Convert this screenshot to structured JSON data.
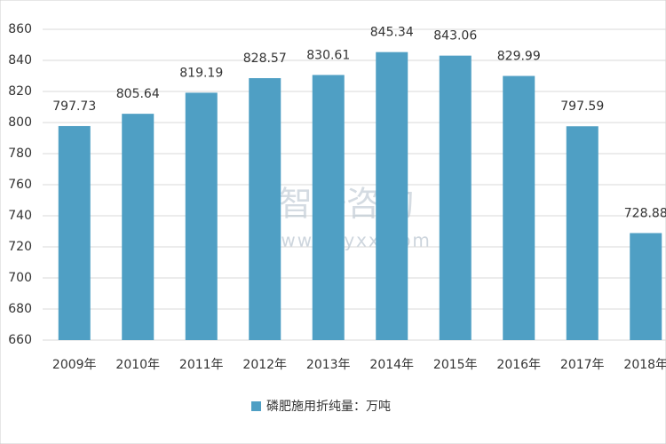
{
  "chart_data": {
    "type": "bar",
    "categories": [
      "2009年",
      "2010年",
      "2011年",
      "2012年",
      "2013年",
      "2014年",
      "2015年",
      "2016年",
      "2017年",
      "2018年"
    ],
    "series": [
      {
        "name": "磷肥施用折纯量：万吨",
        "color": "#4f9fc4",
        "values": [
          797.73,
          805.64,
          819.19,
          828.57,
          830.61,
          845.34,
          843.06,
          829.99,
          797.59,
          728.88
        ]
      }
    ],
    "ylim": [
      660,
      860
    ],
    "yticks": [
      660,
      680,
      700,
      720,
      740,
      760,
      780,
      800,
      820,
      840,
      860
    ],
    "grid": true,
    "legend": "bottom",
    "watermark": {
      "brand": "智研咨询",
      "url": "www.chyxx.com"
    }
  }
}
